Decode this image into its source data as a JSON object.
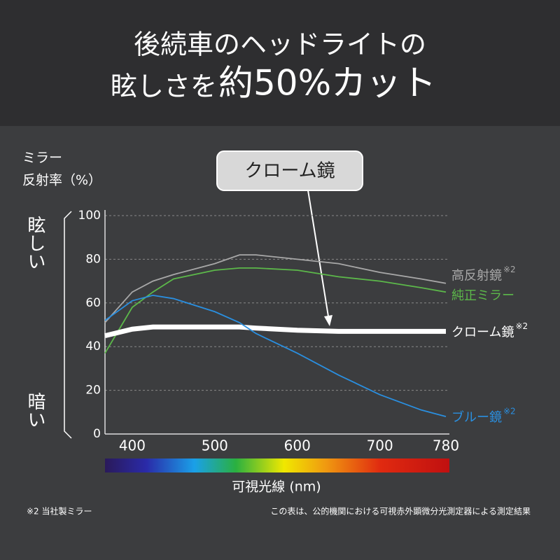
{
  "chart_data": {
    "type": "line",
    "title": "後続車のヘッドライトの",
    "title_line2": "眩しさを",
    "title_emphasis": "約50%カット",
    "y_label_line1": "ミラー",
    "y_label_line2": "反射率（%）",
    "bright_label": "眩しい",
    "dark_label": "暗い",
    "x_label": "可視光線 (nm)",
    "callout": "クローム鏡",
    "footnote_left": "※2 当社製ミラー",
    "footnote_right": "この表は、公的機関における可視赤外顕微分光測定器による測定結果",
    "x": [
      367,
      400,
      425,
      450,
      500,
      530,
      550,
      600,
      650,
      700,
      750,
      780
    ],
    "xlim": [
      367,
      780
    ],
    "xticks": [
      400,
      500,
      600,
      700,
      780
    ],
    "ylim": [
      0,
      100
    ],
    "yticks": [
      0,
      20,
      40,
      60,
      80,
      100
    ],
    "grid": true,
    "series": [
      {
        "name": "高反射鏡",
        "note": "※2",
        "color": "#a8a8a8",
        "values": [
          51,
          65,
          70,
          73,
          78,
          82,
          82,
          80,
          78,
          74,
          71,
          69
        ]
      },
      {
        "name": "純正ミラー",
        "color": "#5cb84a",
        "values": [
          37,
          58,
          65,
          71,
          75,
          76,
          76,
          75,
          72,
          70,
          67,
          65
        ]
      },
      {
        "name": "クローム鏡",
        "note": "※2",
        "color": "#ffffff",
        "values": [
          45,
          48,
          49,
          49,
          49,
          49,
          48.5,
          47.5,
          47,
          47,
          47,
          47
        ]
      },
      {
        "name": "ブルー鏡",
        "note": "※2",
        "color": "#2a8fe0",
        "values": [
          52,
          61,
          63.5,
          62,
          56,
          51,
          46,
          37,
          27,
          18,
          11,
          8
        ]
      }
    ]
  }
}
